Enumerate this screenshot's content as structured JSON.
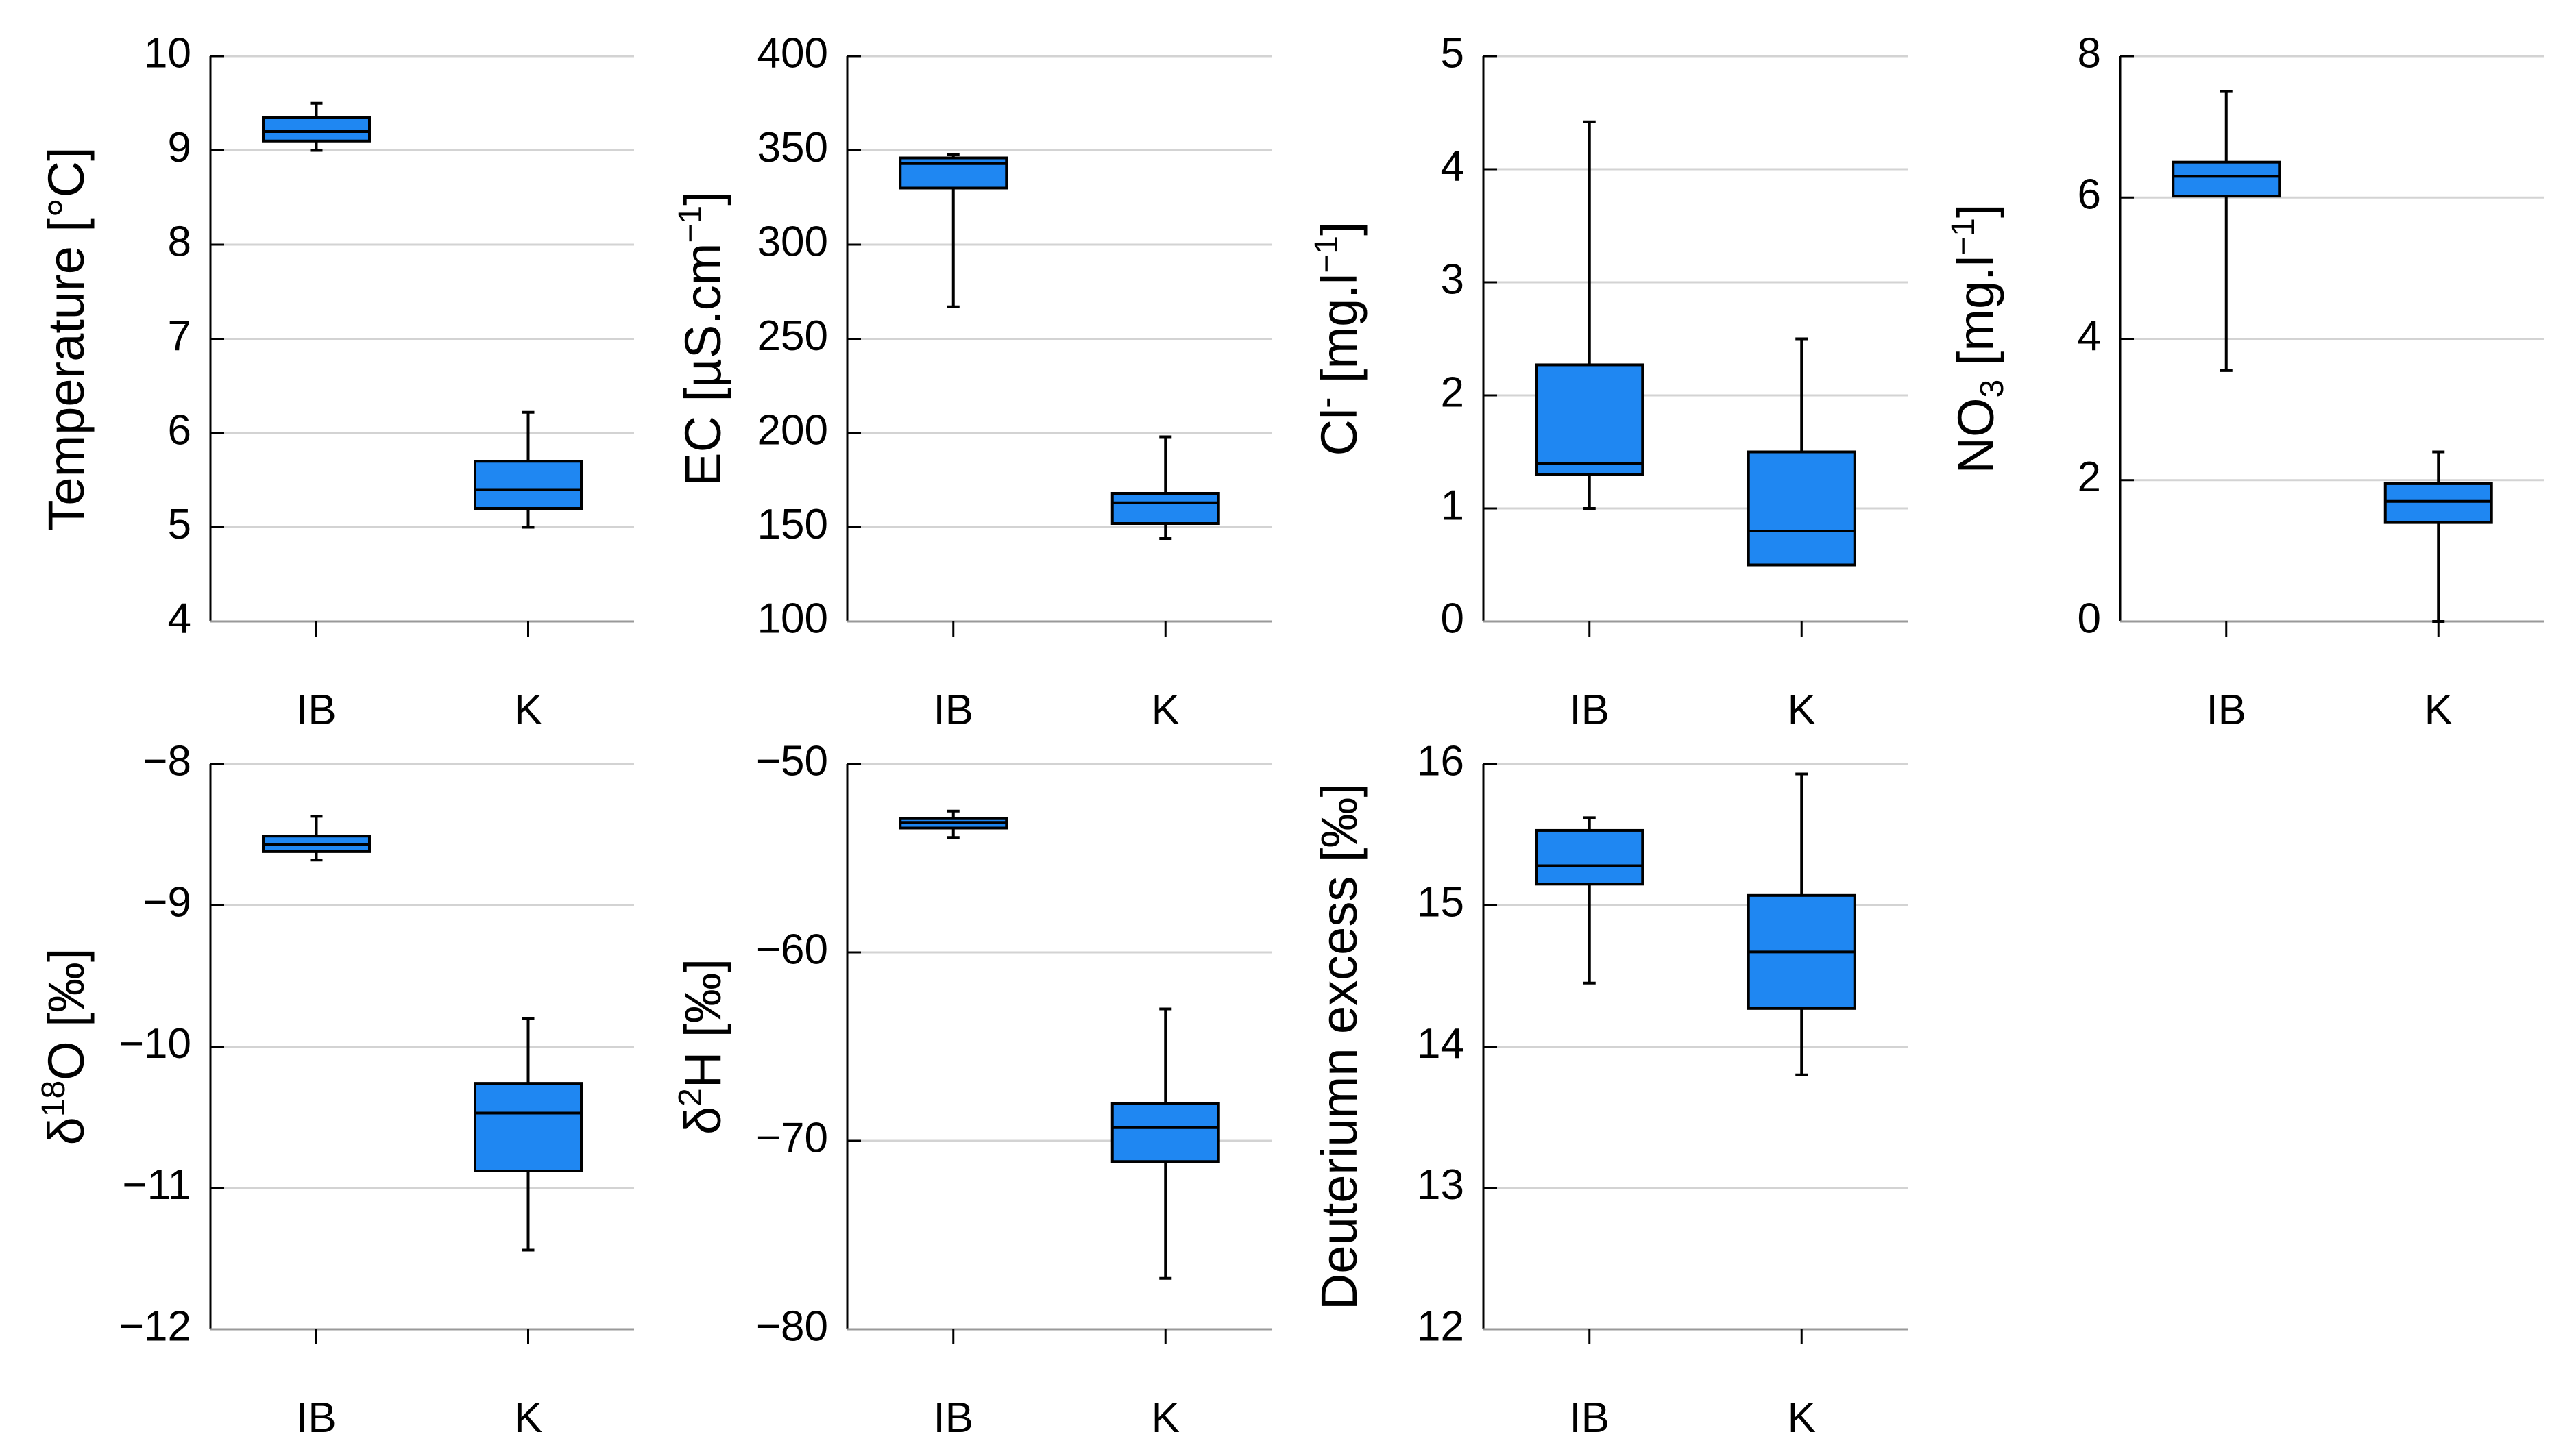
{
  "colors": {
    "box_fill": "#1f87f2",
    "box_stroke": "#000000",
    "grid": "#d3d3d3",
    "axis": "#000000"
  },
  "chart_data": [
    {
      "type": "box",
      "id": "temperature",
      "ylabel": "Temperature [°C]",
      "ylim": [
        4,
        10
      ],
      "yticks": [
        "4",
        "5",
        "6",
        "7",
        "8",
        "9",
        "10"
      ],
      "tick_values": [
        4,
        5,
        6,
        7,
        8,
        9,
        10
      ],
      "categories": [
        "IB",
        "K"
      ],
      "boxes": [
        {
          "category": "IB",
          "min": 9.0,
          "q1": 9.1,
          "median": 9.2,
          "q3": 9.35,
          "max": 9.5
        },
        {
          "category": "K",
          "min": 5.0,
          "q1": 5.2,
          "median": 5.4,
          "q3": 5.7,
          "max": 6.22
        }
      ]
    },
    {
      "type": "box",
      "id": "ec",
      "ylabel": "EC [µS.cm−1]",
      "ylabel_main": "EC [µS.cm",
      "ylabel_sup": "−1",
      "ylabel_end": "]",
      "ylim": [
        100,
        400
      ],
      "yticks": [
        "100",
        "150",
        "200",
        "250",
        "300",
        "350",
        "400"
      ],
      "tick_values": [
        100,
        150,
        200,
        250,
        300,
        350,
        400
      ],
      "categories": [
        "IB",
        "K"
      ],
      "boxes": [
        {
          "category": "IB",
          "min": 267,
          "q1": 330,
          "median": 343,
          "q3": 346,
          "max": 348
        },
        {
          "category": "K",
          "min": 144,
          "q1": 152,
          "median": 163,
          "q3": 168,
          "max": 198
        }
      ]
    },
    {
      "type": "box",
      "id": "chloride",
      "ylabel": "Cl- [mg.l−1]",
      "ylabel_main": "Cl",
      "ylabel_sup": "-",
      "ylabel_mid": " [mg.l",
      "ylabel_sup2": "−1",
      "ylabel_end": "]",
      "ylim": [
        0,
        5
      ],
      "yticks": [
        "0",
        "1",
        "2",
        "3",
        "4",
        "5"
      ],
      "tick_values": [
        0,
        1,
        2,
        3,
        4,
        5
      ],
      "categories": [
        "IB",
        "K"
      ],
      "boxes": [
        {
          "category": "IB",
          "min": 1.0,
          "q1": 1.3,
          "median": 1.4,
          "q3": 2.27,
          "max": 4.42
        },
        {
          "category": "K",
          "min": 0.5,
          "q1": 0.5,
          "median": 0.8,
          "q3": 1.5,
          "max": 2.5
        }
      ]
    },
    {
      "type": "box",
      "id": "nitrate",
      "ylabel": "NO3 [mg.l−1]",
      "ylabel_main": "NO",
      "ylabel_sub": "3",
      "ylabel_mid": " [mg.l",
      "ylabel_sup": "−1",
      "ylabel_end": "]",
      "ylim": [
        0,
        8
      ],
      "yticks": [
        "0",
        "2",
        "4",
        "6",
        "8"
      ],
      "tick_values": [
        0,
        2,
        4,
        6,
        8
      ],
      "categories": [
        "IB",
        "K"
      ],
      "boxes": [
        {
          "category": "IB",
          "min": 3.55,
          "q1": 6.02,
          "median": 6.3,
          "q3": 6.5,
          "max": 7.5
        },
        {
          "category": "K",
          "min": 0.0,
          "q1": 1.4,
          "median": 1.7,
          "q3": 1.95,
          "max": 2.4
        }
      ]
    },
    {
      "type": "box",
      "id": "d18o",
      "ylabel": "δ18O [‰]",
      "ylabel_main": "δ",
      "ylabel_sup": "18",
      "ylabel_end": "O [‰]",
      "ylim": [
        -12,
        -8
      ],
      "yticks": [
        "−12",
        "−11",
        "−10",
        "−9",
        "−8"
      ],
      "tick_values": [
        -12,
        -11,
        -10,
        -9,
        -8
      ],
      "categories": [
        "IB",
        "K"
      ],
      "boxes": [
        {
          "category": "IB",
          "min": -8.68,
          "q1": -8.62,
          "median": -8.57,
          "q3": -8.51,
          "max": -8.37
        },
        {
          "category": "K",
          "min": -11.44,
          "q1": -10.88,
          "median": -10.47,
          "q3": -10.26,
          "max": -9.8
        }
      ]
    },
    {
      "type": "box",
      "id": "d2h",
      "ylabel": "δ2H [‰]",
      "ylabel_main": "δ",
      "ylabel_sup": "2",
      "ylabel_end": "H [‰]",
      "ylim": [
        -80,
        -50
      ],
      "yticks": [
        "−80",
        "−70",
        "−60",
        "−50"
      ],
      "tick_values": [
        -80,
        -70,
        -60,
        -50
      ],
      "categories": [
        "IB",
        "K"
      ],
      "boxes": [
        {
          "category": "IB",
          "min": -53.9,
          "q1": -53.4,
          "median": -53.1,
          "q3": -52.9,
          "max": -52.5
        },
        {
          "category": "K",
          "min": -77.3,
          "q1": -71.1,
          "median": -69.3,
          "q3": -68.0,
          "max": -63.0
        }
      ]
    },
    {
      "type": "box",
      "id": "dexcess",
      "ylabel": "Deuteriumn excess [‰]",
      "ylim": [
        12,
        16
      ],
      "yticks": [
        "12",
        "13",
        "14",
        "15",
        "16"
      ],
      "tick_values": [
        12,
        13,
        14,
        15,
        16
      ],
      "categories": [
        "IB",
        "K"
      ],
      "boxes": [
        {
          "category": "IB",
          "min": 14.45,
          "q1": 15.15,
          "median": 15.28,
          "q3": 15.53,
          "max": 15.62
        },
        {
          "category": "K",
          "min": 13.8,
          "q1": 14.27,
          "median": 14.67,
          "q3": 15.07,
          "max": 15.93
        }
      ]
    }
  ]
}
